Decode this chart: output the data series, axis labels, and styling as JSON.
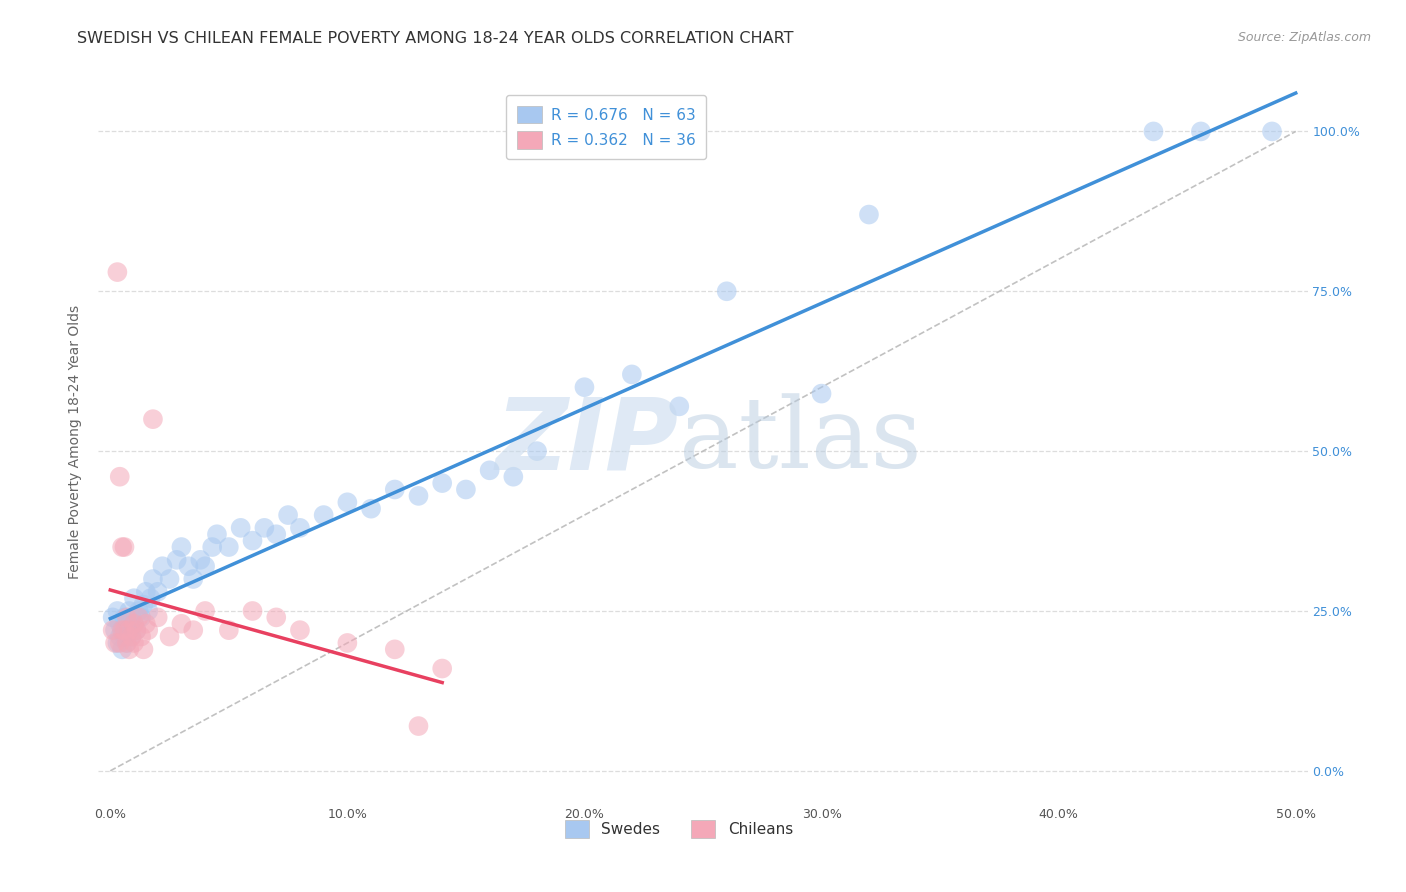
{
  "title": "SWEDISH VS CHILEAN FEMALE POVERTY AMONG 18-24 YEAR OLDS CORRELATION CHART",
  "source": "Source: ZipAtlas.com",
  "ylabel": "Female Poverty Among 18-24 Year Olds",
  "xlim": [
    -0.005,
    0.505
  ],
  "ylim": [
    -0.05,
    1.08
  ],
  "xtick_vals": [
    0.0,
    0.1,
    0.2,
    0.3,
    0.4,
    0.5
  ],
  "xtick_labels": [
    "0.0%",
    "10.0%",
    "20.0%",
    "30.0%",
    "40.0%",
    "50.0%"
  ],
  "ytick_vals": [
    0.0,
    0.25,
    0.5,
    0.75,
    1.0
  ],
  "ytick_labels": [
    "0.0%",
    "25.0%",
    "50.0%",
    "75.0%",
    "100.0%"
  ],
  "blue_fill": "#A8C8F0",
  "pink_fill": "#F4A8B8",
  "blue_line": "#4090D8",
  "pink_line": "#E84060",
  "diag_color": "#BBBBBB",
  "grid_color": "#DDDDDD",
  "bg_color": "#FFFFFF",
  "legend_r_blue": "R = 0.676",
  "legend_n_blue": "N = 63",
  "legend_r_pink": "R = 0.362",
  "legend_n_pink": "N = 36",
  "legend_color": "#4090D8",
  "watermark_zip": "ZIP",
  "watermark_atlas": "atlas",
  "source_text": "Source: ZipAtlas.com",
  "swedes_x": [
    0.001,
    0.002,
    0.003,
    0.003,
    0.004,
    0.004,
    0.005,
    0.005,
    0.006,
    0.006,
    0.007,
    0.007,
    0.008,
    0.008,
    0.009,
    0.009,
    0.01,
    0.01,
    0.011,
    0.012,
    0.013,
    0.014,
    0.015,
    0.016,
    0.017,
    0.018,
    0.02,
    0.022,
    0.025,
    0.028,
    0.03,
    0.033,
    0.035,
    0.038,
    0.04,
    0.043,
    0.045,
    0.05,
    0.055,
    0.06,
    0.065,
    0.07,
    0.075,
    0.08,
    0.09,
    0.1,
    0.11,
    0.12,
    0.13,
    0.14,
    0.15,
    0.16,
    0.17,
    0.18,
    0.2,
    0.22,
    0.24,
    0.26,
    0.3,
    0.32,
    0.44,
    0.46,
    0.49
  ],
  "swedes_y": [
    0.24,
    0.22,
    0.2,
    0.25,
    0.21,
    0.23,
    0.19,
    0.22,
    0.24,
    0.21,
    0.2,
    0.23,
    0.22,
    0.25,
    0.21,
    0.24,
    0.23,
    0.27,
    0.22,
    0.25,
    0.24,
    0.26,
    0.28,
    0.25,
    0.27,
    0.3,
    0.28,
    0.32,
    0.3,
    0.33,
    0.35,
    0.32,
    0.3,
    0.33,
    0.32,
    0.35,
    0.37,
    0.35,
    0.38,
    0.36,
    0.38,
    0.37,
    0.4,
    0.38,
    0.4,
    0.42,
    0.41,
    0.44,
    0.43,
    0.45,
    0.44,
    0.47,
    0.46,
    0.5,
    0.6,
    0.62,
    0.57,
    0.75,
    0.59,
    0.87,
    1.0,
    1.0,
    1.0
  ],
  "chileans_x": [
    0.001,
    0.002,
    0.003,
    0.004,
    0.004,
    0.005,
    0.005,
    0.006,
    0.006,
    0.007,
    0.007,
    0.008,
    0.008,
    0.009,
    0.01,
    0.01,
    0.011,
    0.012,
    0.013,
    0.014,
    0.015,
    0.016,
    0.018,
    0.02,
    0.025,
    0.03,
    0.035,
    0.04,
    0.05,
    0.06,
    0.07,
    0.08,
    0.1,
    0.12,
    0.13,
    0.14
  ],
  "chileans_y": [
    0.22,
    0.2,
    0.78,
    0.46,
    0.2,
    0.35,
    0.22,
    0.35,
    0.22,
    0.24,
    0.2,
    0.22,
    0.19,
    0.21,
    0.23,
    0.2,
    0.22,
    0.24,
    0.21,
    0.19,
    0.23,
    0.22,
    0.55,
    0.24,
    0.21,
    0.23,
    0.22,
    0.25,
    0.22,
    0.25,
    0.24,
    0.22,
    0.2,
    0.19,
    0.07,
    0.16
  ],
  "marker_size": 200,
  "alpha": 0.55,
  "title_fontsize": 11.5,
  "tick_fontsize": 9,
  "ylabel_fontsize": 10,
  "source_fontsize": 9
}
